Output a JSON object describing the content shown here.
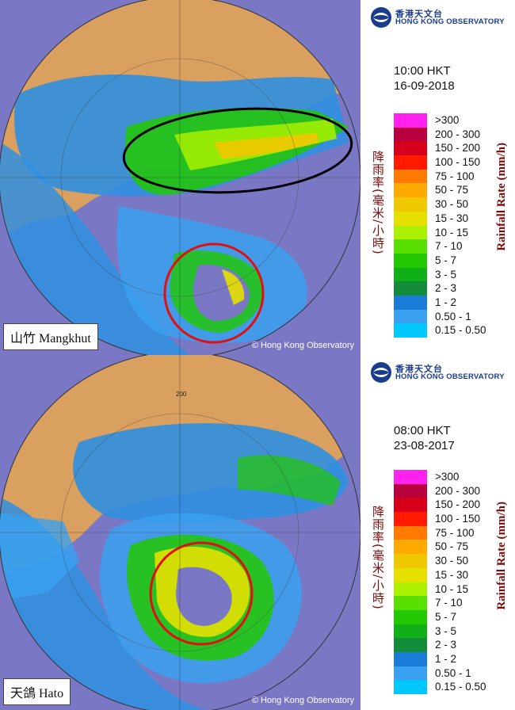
{
  "panels": [
    {
      "storm_name": "山竹 Mangkhut",
      "time": "10:00 HKT",
      "date": "16-09-2018",
      "credit": "© Hong Kong Observatory",
      "ring_label": "",
      "logo": {
        "cn": "香港天文台",
        "en": "HONG KONG OBSERVATORY"
      }
    },
    {
      "storm_name": "天鴿 Hato",
      "time": "08:00 HKT",
      "date": "23-08-2017",
      "credit": "© Hong Kong Observatory",
      "ring_label": "200",
      "logo": {
        "cn": "香港天文台",
        "en": "HONG KONG OBSERVATORY"
      }
    }
  ],
  "legend": {
    "title_cn": "降雨率(毫米/小時)",
    "title_en": "Rainfall Rate (mm/h)",
    "bins": [
      {
        "label": ">300",
        "color": "#ff22ee"
      },
      {
        "label": "200 - 300",
        "color": "#b8003c"
      },
      {
        "label": "150 - 200",
        "color": "#d6001a"
      },
      {
        "label": "100 - 150",
        "color": "#ff1a00"
      },
      {
        "label": "75 - 100",
        "color": "#ff7a00"
      },
      {
        "label": "50 - 75",
        "color": "#ffaa00"
      },
      {
        "label": "30 - 50",
        "color": "#f0c800"
      },
      {
        "label": "15 - 30",
        "color": "#e6e000"
      },
      {
        "label": "10 - 15",
        "color": "#aaf000"
      },
      {
        "label": "7 - 10",
        "color": "#5ae000"
      },
      {
        "label": "5 - 7",
        "color": "#22c800"
      },
      {
        "label": "3 - 5",
        "color": "#0fb018"
      },
      {
        "label": "2 - 3",
        "color": "#138c3a"
      },
      {
        "label": "1 - 2",
        "color": "#1a7cd8"
      },
      {
        "label": "0.50 - 1",
        "color": "#3aa0f0"
      },
      {
        "label": "0.15 - 0.50",
        "color": "#00c8ff"
      }
    ]
  },
  "colors": {
    "sea": "#7a78c4",
    "land": "#d9a05f",
    "annotation_red": "#e01010",
    "annotation_black": "#000000"
  }
}
